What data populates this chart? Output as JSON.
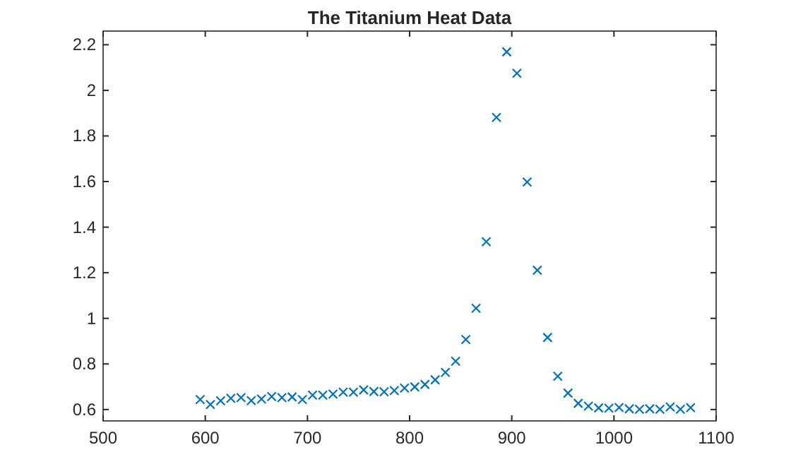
{
  "chart_data": {
    "type": "scatter",
    "title": "The Titanium Heat Data",
    "x": [
      595,
      605,
      615,
      625,
      635,
      645,
      655,
      665,
      675,
      685,
      695,
      705,
      715,
      725,
      735,
      745,
      755,
      765,
      775,
      785,
      795,
      805,
      815,
      825,
      835,
      845,
      855,
      865,
      875,
      885,
      895,
      905,
      915,
      925,
      935,
      945,
      955,
      965,
      975,
      985,
      995,
      1005,
      1015,
      1025,
      1035,
      1045,
      1055,
      1065,
      1075
    ],
    "series": [
      {
        "color": "#0072bd",
        "values": [
          0.644,
          0.622,
          0.638,
          0.649,
          0.652,
          0.639,
          0.646,
          0.657,
          0.652,
          0.655,
          0.644,
          0.663,
          0.663,
          0.668,
          0.676,
          0.676,
          0.686,
          0.679,
          0.678,
          0.683,
          0.694,
          0.699,
          0.71,
          0.73,
          0.763,
          0.812,
          0.907,
          1.044,
          1.336,
          1.881,
          2.169,
          2.075,
          1.598,
          1.211,
          0.916,
          0.746,
          0.672,
          0.627,
          0.615,
          0.607,
          0.606,
          0.609,
          0.603,
          0.601,
          0.603,
          0.601,
          0.611,
          0.601,
          0.608
        ]
      }
    ],
    "xlim": [
      500,
      1100
    ],
    "xticks": [
      500,
      600,
      700,
      800,
      900,
      1000,
      1100
    ],
    "ylim": [
      0.55,
      2.26
    ],
    "yticks": [
      0.6,
      0.8,
      1,
      1.2,
      1.4,
      1.6,
      1.8,
      2,
      2.2
    ],
    "marker": "cross",
    "grid": false
  }
}
